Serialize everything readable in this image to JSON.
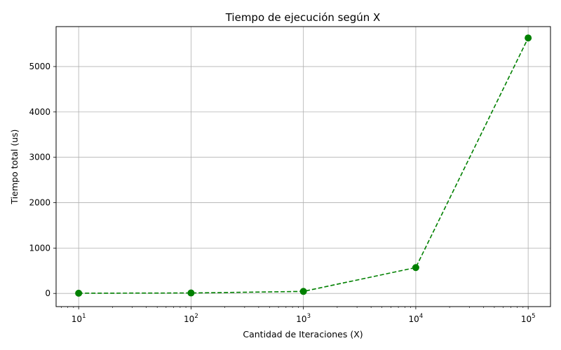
{
  "chart_data": {
    "type": "line",
    "title": "Tiempo de ejecución según X",
    "xlabel": "Cantidad de Iteraciones (X)",
    "ylabel": "Tiempo total (us)",
    "x_scale": "log",
    "grid": true,
    "x_ticks": [
      {
        "value": 10,
        "base": "10",
        "exp": "1"
      },
      {
        "value": 100,
        "base": "10",
        "exp": "2"
      },
      {
        "value": 1000,
        "base": "10",
        "exp": "3"
      },
      {
        "value": 10000,
        "base": "10",
        "exp": "4"
      },
      {
        "value": 100000,
        "base": "10",
        "exp": "5"
      }
    ],
    "y_ticks": [
      "0",
      "1000",
      "2000",
      "3000",
      "4000",
      "5000"
    ],
    "xlim": [
      6.3,
      158000
    ],
    "ylim": [
      -290,
      5880
    ],
    "series": [
      {
        "color": "#008000",
        "line_style": "dashed",
        "marker": "circle",
        "x": [
          10,
          100,
          1000,
          10000,
          100000
        ],
        "y": [
          5,
          10,
          45,
          570,
          5630
        ]
      }
    ]
  }
}
